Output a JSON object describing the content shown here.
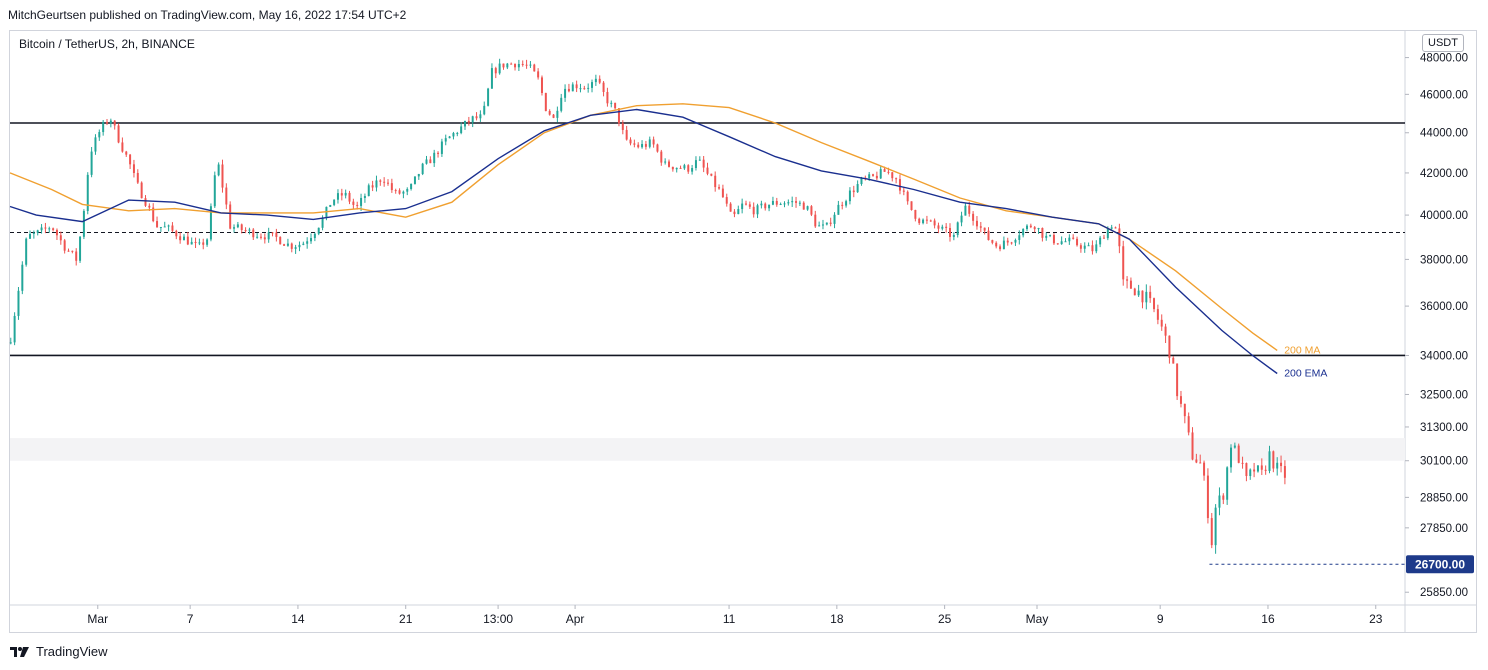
{
  "header": {
    "published": "MitchGeurtsen published on TradingView.com, May 16, 2022 17:54 UTC+2"
  },
  "symbol": "Bitcoin / TetherUS, 2h, BINANCE",
  "currency": "USDT",
  "footer": {
    "brand": "TradingView"
  },
  "colors": {
    "ma": "#f0a030",
    "ema": "#1a2f8f",
    "up": "#22a699",
    "down": "#ef5350",
    "price_tag": "#1e3a8a"
  },
  "chart_data": {
    "type": "candlestick",
    "symbol": "BTCUSDT",
    "timeframe": "2h",
    "exchange": "BINANCE",
    "y_scale": "log",
    "ylim": [
      25500,
      49500
    ],
    "y_ticks": [
      {
        "value": 48000,
        "label": "48000.00"
      },
      {
        "value": 46000,
        "label": "46000.00"
      },
      {
        "value": 44000,
        "label": "44000.00"
      },
      {
        "value": 42000,
        "label": "42000.00"
      },
      {
        "value": 40000,
        "label": "40000.00"
      },
      {
        "value": 38000,
        "label": "38000.00"
      },
      {
        "value": 36000,
        "label": "36000.00"
      },
      {
        "value": 34000,
        "label": "34000.00"
      },
      {
        "value": 32500,
        "label": "32500.00"
      },
      {
        "value": 31300,
        "label": "31300.00"
      },
      {
        "value": 30100,
        "label": "30100.00"
      },
      {
        "value": 28850,
        "label": "28850.00"
      },
      {
        "value": 27850,
        "label": "27850.00"
      },
      {
        "value": 25850,
        "label": "25850.00"
      }
    ],
    "x_ticks": [
      {
        "day": 1,
        "label": "Mar"
      },
      {
        "day": 7,
        "label": "7"
      },
      {
        "day": 14,
        "label": "14"
      },
      {
        "day": 21,
        "label": "21"
      },
      {
        "day": 27,
        "label": "13:00"
      },
      {
        "day": 32,
        "label": "Apr"
      },
      {
        "day": 42,
        "label": "11"
      },
      {
        "day": 49,
        "label": "18"
      },
      {
        "day": 56,
        "label": "25"
      },
      {
        "day": 62,
        "label": "May"
      },
      {
        "day": 70,
        "label": "9"
      },
      {
        "day": 77,
        "label": "16"
      },
      {
        "day": 84,
        "label": "23"
      }
    ],
    "x_range_days": [
      -4.7,
      85.9
    ],
    "horizontal_levels": [
      {
        "value": 44500,
        "style": "solid"
      },
      {
        "value": 39200,
        "style": "dashed"
      },
      {
        "value": 34000,
        "style": "solid"
      }
    ],
    "zone": {
      "from": 30100,
      "to": 30900
    },
    "low_marker": {
      "value": 26700,
      "label": "26700.00",
      "from_day": 73.2
    },
    "price_path": [
      [
        -4.7,
        34500
      ],
      [
        -4.2,
        36500
      ],
      [
        -3.6,
        39000
      ],
      [
        -2.8,
        39200
      ],
      [
        -2,
        39500
      ],
      [
        -1.2,
        38600
      ],
      [
        -0.4,
        38000
      ],
      [
        0,
        39600
      ],
      [
        0.5,
        43000
      ],
      [
        1.2,
        44200
      ],
      [
        1.8,
        44800
      ],
      [
        2.5,
        43400
      ],
      [
        3,
        42600
      ],
      [
        3.5,
        41500
      ],
      [
        4.2,
        40500
      ],
      [
        4.8,
        39500
      ],
      [
        5.5,
        39400
      ],
      [
        6.2,
        39100
      ],
      [
        6.9,
        38800
      ],
      [
        7.5,
        38500
      ],
      [
        8.2,
        39000
      ],
      [
        8.5,
        41500
      ],
      [
        8.8,
        42500
      ],
      [
        9.2,
        41000
      ],
      [
        9.6,
        39500
      ],
      [
        10.5,
        39300
      ],
      [
        11.5,
        39100
      ],
      [
        12.5,
        39000
      ],
      [
        13.5,
        38600
      ],
      [
        14.3,
        38700
      ],
      [
        15,
        39200
      ],
      [
        15.6,
        39800
      ],
      [
        16.2,
        40700
      ],
      [
        17,
        41000
      ],
      [
        17.8,
        40300
      ],
      [
        18.6,
        41200
      ],
      [
        19.5,
        41800
      ],
      [
        20.3,
        41000
      ],
      [
        21.2,
        41100
      ],
      [
        22,
        42200
      ],
      [
        22.8,
        42800
      ],
      [
        23.6,
        43600
      ],
      [
        24.5,
        44200
      ],
      [
        25.3,
        44700
      ],
      [
        26,
        44800
      ],
      [
        26.6,
        47200
      ],
      [
        27.3,
        47600
      ],
      [
        28.2,
        47700
      ],
      [
        29,
        47500
      ],
      [
        29.6,
        46800
      ],
      [
        30.1,
        45300
      ],
      [
        30.6,
        44700
      ],
      [
        31.2,
        46300
      ],
      [
        32,
        46500
      ],
      [
        32.7,
        46400
      ],
      [
        33.4,
        46700
      ],
      [
        34,
        45800
      ],
      [
        34.7,
        45000
      ],
      [
        35.3,
        43500
      ],
      [
        36.2,
        43300
      ],
      [
        37,
        43500
      ],
      [
        37.8,
        42400
      ],
      [
        38.6,
        42300
      ],
      [
        39.3,
        42200
      ],
      [
        40,
        42600
      ],
      [
        40.8,
        41700
      ],
      [
        41.5,
        41000
      ],
      [
        42.2,
        39800
      ],
      [
        42.9,
        40500
      ],
      [
        43.7,
        40200
      ],
      [
        44.5,
        40500
      ],
      [
        45.4,
        40600
      ],
      [
        46.3,
        40600
      ],
      [
        47,
        40400
      ],
      [
        47.7,
        39500
      ],
      [
        48.3,
        39400
      ],
      [
        49,
        40300
      ],
      [
        49.8,
        41000
      ],
      [
        50.6,
        41600
      ],
      [
        51.4,
        41800
      ],
      [
        52.2,
        42100
      ],
      [
        52.9,
        41700
      ],
      [
        53.6,
        40500
      ],
      [
        54.3,
        39800
      ],
      [
        55.1,
        39600
      ],
      [
        55.9,
        39300
      ],
      [
        56.6,
        39000
      ],
      [
        57.3,
        40400
      ],
      [
        58,
        39800
      ],
      [
        58.7,
        39000
      ],
      [
        59.4,
        38600
      ],
      [
        60.2,
        38800
      ],
      [
        61,
        39300
      ],
      [
        61.8,
        39600
      ],
      [
        62.5,
        39000
      ],
      [
        63.3,
        38800
      ],
      [
        64.1,
        38800
      ],
      [
        64.9,
        38600
      ],
      [
        65.7,
        38400
      ],
      [
        66.4,
        39200
      ],
      [
        67,
        39700
      ],
      [
        67.3,
        38700
      ],
      [
        67.6,
        36900
      ],
      [
        68.2,
        36800
      ],
      [
        69,
        36400
      ],
      [
        69.6,
        35800
      ],
      [
        70.1,
        35100
      ],
      [
        70.6,
        34200
      ],
      [
        71.1,
        32600
      ],
      [
        71.6,
        31500
      ],
      [
        72.1,
        30300
      ],
      [
        72.6,
        30000
      ],
      [
        73,
        29000
      ],
      [
        73.3,
        27200
      ],
      [
        73.6,
        28500
      ],
      [
        74.1,
        29000
      ],
      [
        74.6,
        30700
      ],
      [
        75.1,
        30200
      ],
      [
        75.6,
        29400
      ],
      [
        76.1,
        29800
      ],
      [
        76.6,
        29600
      ],
      [
        77.1,
        30300
      ],
      [
        77.6,
        29800
      ],
      [
        78.1,
        29600
      ]
    ],
    "series": [
      {
        "name": "200 MA",
        "label": "200 MA",
        "color": "#f0a030",
        "points": [
          [
            -4.7,
            42000
          ],
          [
            -2,
            41200
          ],
          [
            0,
            40500
          ],
          [
            3,
            40200
          ],
          [
            6,
            40300
          ],
          [
            9,
            40100
          ],
          [
            12,
            40100
          ],
          [
            15,
            40100
          ],
          [
            18,
            40300
          ],
          [
            21,
            39900
          ],
          [
            24,
            40600
          ],
          [
            27,
            42400
          ],
          [
            30,
            44000
          ],
          [
            33,
            44900
          ],
          [
            36,
            45400
          ],
          [
            39,
            45500
          ],
          [
            42,
            45300
          ],
          [
            45,
            44500
          ],
          [
            48,
            43500
          ],
          [
            51,
            42600
          ],
          [
            54,
            41700
          ],
          [
            57,
            40800
          ],
          [
            60,
            40200
          ],
          [
            63,
            39900
          ],
          [
            66,
            39600
          ],
          [
            68,
            38900
          ],
          [
            71,
            37500
          ],
          [
            74,
            35900
          ],
          [
            76,
            34900
          ],
          [
            77.6,
            34200
          ]
        ]
      },
      {
        "name": "200 EMA",
        "label": "200 EMA",
        "color": "#1a2f8f",
        "points": [
          [
            -4.7,
            40400
          ],
          [
            -3,
            40000
          ],
          [
            0,
            39700
          ],
          [
            3,
            40700
          ],
          [
            6,
            40600
          ],
          [
            9,
            40100
          ],
          [
            12,
            40000
          ],
          [
            15,
            39800
          ],
          [
            18,
            40100
          ],
          [
            21,
            40300
          ],
          [
            24,
            41100
          ],
          [
            27,
            42700
          ],
          [
            30,
            44100
          ],
          [
            33,
            44900
          ],
          [
            36,
            45200
          ],
          [
            39,
            44800
          ],
          [
            42,
            43800
          ],
          [
            45,
            42800
          ],
          [
            48,
            42100
          ],
          [
            51,
            41700
          ],
          [
            54,
            41200
          ],
          [
            57,
            40600
          ],
          [
            60,
            40300
          ],
          [
            63,
            39900
          ],
          [
            66,
            39600
          ],
          [
            68,
            38900
          ],
          [
            71,
            36800
          ],
          [
            74,
            35000
          ],
          [
            76,
            34000
          ],
          [
            77.6,
            33300
          ]
        ]
      }
    ]
  }
}
